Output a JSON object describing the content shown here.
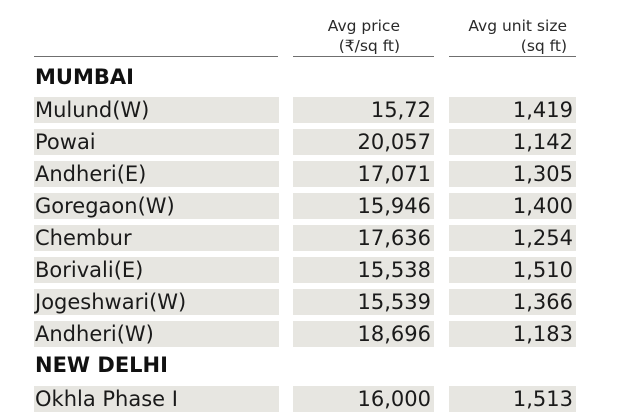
{
  "chart_data": {
    "type": "table",
    "columns": [
      {
        "key": "location",
        "label_lines": []
      },
      {
        "key": "avg_price",
        "label_lines": [
          "Avg price",
          "(₹/sq ft)"
        ]
      },
      {
        "key": "avg_unit_size",
        "label_lines": [
          "Avg unit size",
          "(sq ft)"
        ]
      }
    ],
    "sections": [
      {
        "name": "MUMBAI",
        "rows": [
          {
            "location": "Mulund(W)",
            "avg_price": "15,72",
            "avg_unit_size": "1,419"
          },
          {
            "location": "Powai",
            "avg_price": "20,057",
            "avg_unit_size": "1,142"
          },
          {
            "location": "Andheri(E)",
            "avg_price": "17,071",
            "avg_unit_size": "1,305"
          },
          {
            "location": "Goregaon(W)",
            "avg_price": "15,946",
            "avg_unit_size": "1,400"
          },
          {
            "location": "Chembur",
            "avg_price": "17,636",
            "avg_unit_size": "1,254"
          },
          {
            "location": "Borivali(E)",
            "avg_price": "15,538",
            "avg_unit_size": "1,510"
          },
          {
            "location": "Jogeshwari(W)",
            "avg_price": "15,539",
            "avg_unit_size": "1,366"
          },
          {
            "location": "Andheri(W)",
            "avg_price": "18,696",
            "avg_unit_size": "1,183"
          }
        ]
      },
      {
        "name": "NEW DELHI",
        "rows": [
          {
            "location": "Okhla Phase I",
            "avg_price": "16,000",
            "avg_unit_size": "1,513"
          }
        ]
      }
    ]
  }
}
